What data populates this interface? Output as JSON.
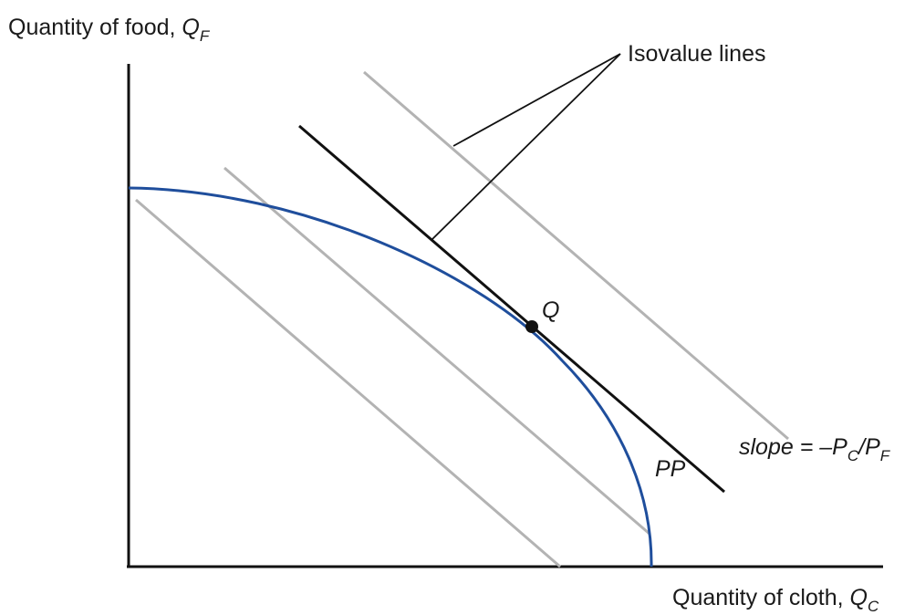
{
  "y_axis": {
    "text": "Quantity of food, ",
    "var": "Q",
    "sub": "F"
  },
  "x_axis": {
    "text": "Quantity of cloth, ",
    "var": "Q",
    "sub": "C"
  },
  "isovalue_label": "Isovalue lines",
  "point_label": "Q",
  "curve_label": "PP",
  "slope_label": {
    "prefix": "slope = –",
    "p1": "P",
    "s1": "C",
    "mid": "/",
    "p2": "P",
    "s2": "F"
  },
  "colors": {
    "axes": "#111111",
    "ppf": "#1f4e9c",
    "isovalue_gray": "#b3b3b3",
    "tangent_line": "#111111"
  }
}
